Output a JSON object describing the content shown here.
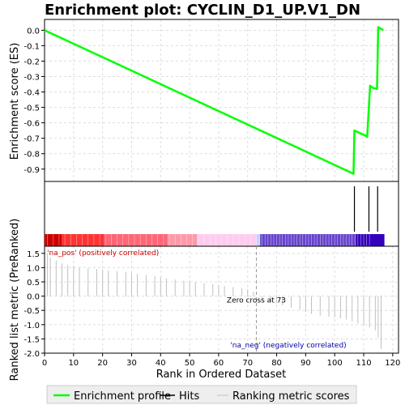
{
  "chart_data": {
    "type": "line",
    "title": "Enrichment plot: CYCLIN_D1_UP.V1_DN",
    "xlabel": "Rank in Ordered Dataset",
    "xlim": [
      0,
      122
    ],
    "x_ticks": [
      0,
      10,
      20,
      30,
      40,
      50,
      60,
      70,
      80,
      90,
      100,
      110,
      120
    ],
    "top_panel": {
      "ylabel": "Enrichment score (ES)",
      "ylim": [
        -0.98,
        0.07
      ],
      "y_ticks": [
        0.0,
        -0.1,
        -0.2,
        -0.3,
        -0.4,
        -0.5,
        -0.6,
        -0.7,
        -0.8,
        -0.9
      ],
      "y_tick_labels": [
        "0.0",
        "-0.1",
        "-0.2",
        "-0.3",
        "-0.4",
        "-0.5",
        "-0.6",
        "-0.7",
        "-0.8",
        "-0.9"
      ],
      "grid": true,
      "series": [
        {
          "name": "Enrichment profile",
          "color": "#00ff00",
          "x": [
            0,
            106.5,
            106.8,
            110.8,
            111.2,
            112.2,
            113.3,
            114.6,
            115.0,
            116.8
          ],
          "y": [
            0.0,
            -0.93,
            -0.65,
            -0.685,
            -0.69,
            -0.36,
            -0.375,
            -0.38,
            0.02,
            0.0
          ]
        }
      ]
    },
    "hits": {
      "name": "Hits",
      "color": "#000000",
      "x": [
        106.8,
        111.8,
        114.8
      ]
    },
    "bottom_panel": {
      "ylabel": "Ranked list metric (PreRanked)",
      "ylim": [
        -2.0,
        1.75
      ],
      "y_ticks": [
        1.5,
        1.0,
        0.5,
        0.0,
        -0.5,
        -1.0,
        -1.5,
        -2.0
      ],
      "y_tick_labels": [
        "1.5",
        "1.0",
        "0.5",
        "0.0",
        "-0.5",
        "-1.0",
        "-1.5",
        "-2.0"
      ],
      "grid": true,
      "series": [
        {
          "name": "Ranking metric scores",
          "color": "#c0c0c0",
          "x": [
            1,
            2,
            4,
            6,
            8,
            10,
            12,
            15,
            18,
            20,
            22,
            25,
            28,
            30,
            32,
            35,
            38,
            40,
            42,
            45,
            48,
            50,
            52,
            55,
            58,
            60,
            62,
            65,
            68,
            70,
            72,
            73,
            75,
            78,
            80,
            82,
            85,
            88,
            90,
            92,
            95,
            98,
            100,
            102,
            104,
            106,
            108,
            110,
            112,
            114,
            115,
            116
          ],
          "y": [
            1.5,
            1.35,
            1.25,
            1.15,
            1.1,
            1.05,
            1.0,
            0.97,
            0.95,
            0.93,
            0.9,
            0.88,
            0.85,
            0.82,
            0.78,
            0.74,
            0.7,
            0.66,
            0.62,
            0.58,
            0.55,
            0.52,
            0.49,
            0.46,
            0.42,
            0.39,
            0.36,
            0.32,
            0.28,
            0.24,
            0.15,
            0.0,
            -0.1,
            -0.18,
            -0.25,
            -0.32,
            -0.4,
            -0.48,
            -0.55,
            -0.62,
            -0.68,
            -0.72,
            -0.75,
            -0.78,
            -0.82,
            -0.88,
            -0.95,
            -1.02,
            -1.1,
            -1.2,
            -1.45,
            -1.85
          ]
        }
      ],
      "annotations": {
        "zero_cross": "Zero cross at 73",
        "zero_cross_x": 73,
        "positive_label": "'na_pos' (positively correlated)",
        "negative_label": "'na_neg' (negatively correlated)"
      }
    },
    "colorbar": {
      "split_rank": 73,
      "max_rank": 117,
      "positive_colors": [
        "#cc0000",
        "#ff3333",
        "#ff6677",
        "#ff99aa",
        "#ffccee"
      ],
      "negative_colors": [
        "#ccccff",
        "#6644cc",
        "#3300bb"
      ]
    },
    "legend": {
      "placement": "bottom",
      "items": [
        {
          "label": "Enrichment profile",
          "color": "#00ff00"
        },
        {
          "label": "Hits",
          "color": "#000000"
        },
        {
          "label": "Ranking metric scores",
          "color": "#c0c0c0"
        }
      ]
    }
  }
}
